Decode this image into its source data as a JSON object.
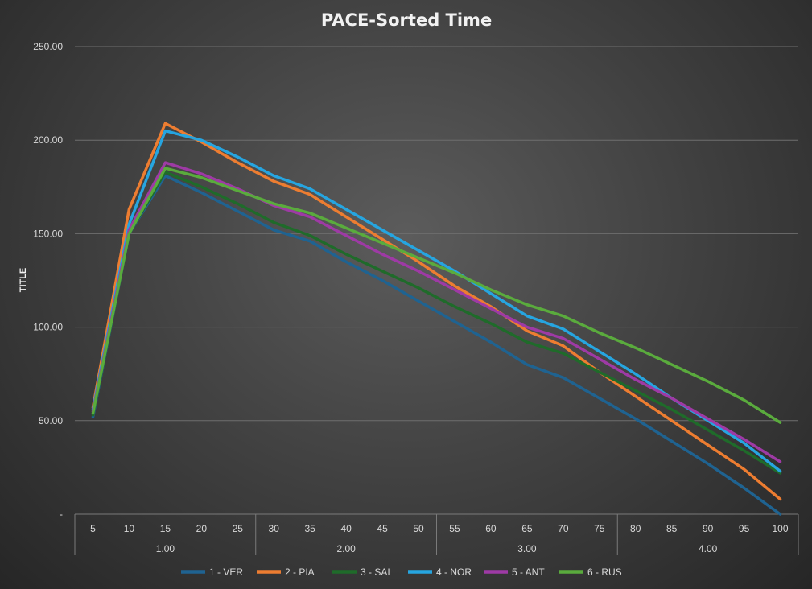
{
  "chart_data": {
    "type": "line",
    "title": "PACE-Sorted Time",
    "ylabel": "TITLE",
    "ylim": [
      0,
      250
    ],
    "yticks": [
      0,
      50,
      100,
      150,
      200,
      250
    ],
    "ytick_labels": [
      "-",
      "50.00",
      "100.00",
      "150.00",
      "200.00",
      "250.00"
    ],
    "categories": [
      "5",
      "10",
      "15",
      "20",
      "25",
      "30",
      "35",
      "40",
      "45",
      "50",
      "55",
      "60",
      "65",
      "70",
      "75",
      "80",
      "85",
      "90",
      "95",
      "100"
    ],
    "category_groups": [
      {
        "label": "1.00",
        "span": 5
      },
      {
        "label": "2.00",
        "span": 5
      },
      {
        "label": "3.00",
        "span": 5
      },
      {
        "label": "4.00",
        "span": 5
      }
    ],
    "grid": true,
    "legend_position": "bottom",
    "series": [
      {
        "name": "1 - VER",
        "color": "#1f6391",
        "values": [
          52,
          150,
          181,
          172,
          162,
          152,
          146,
          135,
          125,
          114,
          103,
          92,
          80,
          73,
          62,
          51,
          39,
          27,
          14,
          0
        ]
      },
      {
        "name": "2 - PIA",
        "color": "#ed7d31",
        "values": [
          57,
          163,
          209,
          199,
          188,
          178,
          171,
          159,
          147,
          135,
          122,
          111,
          98,
          90,
          76,
          63,
          50,
          37,
          24,
          8
        ]
      },
      {
        "name": "3 - SAI",
        "color": "#1f6b2a",
        "values": [
          53,
          150,
          183,
          175,
          166,
          156,
          149,
          139,
          130,
          121,
          111,
          102,
          92,
          86,
          76,
          66,
          56,
          45,
          34,
          22
        ]
      },
      {
        "name": "4 - NOR",
        "color": "#26a5e0",
        "values": [
          56,
          155,
          205,
          200,
          191,
          181,
          174,
          163,
          152,
          141,
          130,
          118,
          106,
          99,
          87,
          75,
          62,
          50,
          38,
          23
        ]
      },
      {
        "name": "5 - ANT",
        "color": "#9e3aa5",
        "values": [
          55,
          152,
          188,
          182,
          174,
          165,
          159,
          149,
          139,
          130,
          120,
          110,
          100,
          94,
          83,
          72,
          62,
          51,
          40,
          28
        ]
      },
      {
        "name": "6 - RUS",
        "color": "#5aab3d",
        "values": [
          54,
          150,
          185,
          180,
          173,
          166,
          161,
          153,
          145,
          137,
          129,
          120,
          112,
          106,
          97,
          89,
          80,
          71,
          61,
          49
        ]
      }
    ]
  }
}
